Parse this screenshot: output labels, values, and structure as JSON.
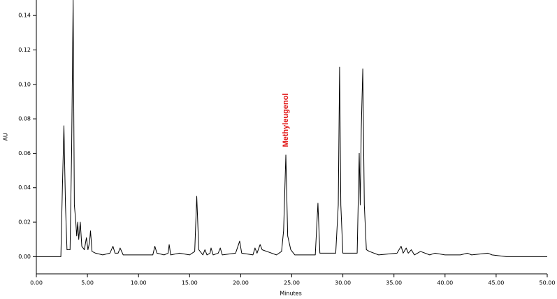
{
  "chart_data": {
    "type": "line",
    "annotation": "Methyleugenol",
    "x_label": "Minutes",
    "y_label": "AU",
    "xlim": [
      0,
      50
    ],
    "ylim": [
      -0.01,
      0.149
    ],
    "xticks": [
      {
        "value": 0,
        "label": "0.00"
      },
      {
        "value": 5,
        "label": "5.00"
      },
      {
        "value": 10,
        "label": "10.00"
      },
      {
        "value": 15,
        "label": "15.00"
      },
      {
        "value": 20,
        "label": "20.00"
      },
      {
        "value": 25,
        "label": "25.00"
      },
      {
        "value": 30,
        "label": "30.00"
      },
      {
        "value": 35,
        "label": "35.00"
      },
      {
        "value": 40,
        "label": "40.00"
      },
      {
        "value": 45,
        "label": "45.00"
      },
      {
        "value": 50,
        "label": "50.00"
      }
    ],
    "yticks": [
      {
        "value": 0,
        "label": "0.00"
      },
      {
        "value": 0.02,
        "label": "0.02"
      },
      {
        "value": 0.04,
        "label": "0.04"
      },
      {
        "value": 0.06,
        "label": "0.06"
      },
      {
        "value": 0.08,
        "label": "0.08"
      },
      {
        "value": 0.1,
        "label": "0.10"
      },
      {
        "value": 0.12,
        "label": "0.12"
      },
      {
        "value": 0.14,
        "label": "0.14"
      }
    ],
    "color": "#000000",
    "x": [
      0,
      2.4,
      2.55,
      2.7,
      2.85,
      3.0,
      3.3,
      3.45,
      3.6,
      3.72,
      3.85,
      3.95,
      4.05,
      4.15,
      4.3,
      4.45,
      4.7,
      4.9,
      5.05,
      5.2,
      5.3,
      5.45,
      5.8,
      6.5,
      7.2,
      7.5,
      7.7,
      8.0,
      8.2,
      8.5,
      9.5,
      10.5,
      11.4,
      11.6,
      11.8,
      12.5,
      12.9,
      13.0,
      13.15,
      14.0,
      15.0,
      15.5,
      15.7,
      15.9,
      16.3,
      16.5,
      16.7,
      17.0,
      17.1,
      17.3,
      17.8,
      18.0,
      18.2,
      19.5,
      19.9,
      20.1,
      21.2,
      21.4,
      21.6,
      21.9,
      22.1,
      23.5,
      24.0,
      24.2,
      24.42,
      24.6,
      24.9,
      25.3,
      27.3,
      27.56,
      27.75,
      29.3,
      29.55,
      29.68,
      29.8,
      30.0,
      31.4,
      31.6,
      31.7,
      31.8,
      31.95,
      32.1,
      32.3,
      32.6,
      33.5,
      35.3,
      35.7,
      35.9,
      36.2,
      36.4,
      36.7,
      37.0,
      37.6,
      38.5,
      39.0,
      40.0,
      41.5,
      42.2,
      42.6,
      44.2,
      44.6,
      46,
      50
    ],
    "values": [
      0,
      0,
      0.04,
      0.076,
      0.03,
      0.004,
      0.004,
      0.06,
      0.149,
      0.03,
      0.021,
      0.012,
      0.02,
      0.01,
      0.02,
      0.006,
      0.004,
      0.011,
      0.004,
      0.008,
      0.015,
      0.003,
      0.002,
      0.001,
      0.002,
      0.006,
      0.002,
      0.002,
      0.005,
      0.001,
      0.001,
      0.001,
      0.001,
      0.006,
      0.002,
      0.001,
      0.002,
      0.007,
      0.001,
      0.002,
      0.001,
      0.003,
      0.035,
      0.004,
      0.001,
      0.004,
      0.001,
      0.002,
      0.005,
      0.001,
      0.002,
      0.005,
      0.001,
      0.002,
      0.009,
      0.002,
      0.001,
      0.005,
      0.002,
      0.007,
      0.004,
      0.001,
      0.003,
      0.015,
      0.059,
      0.012,
      0.004,
      0.001,
      0.001,
      0.031,
      0.002,
      0.002,
      0.03,
      0.11,
      0.03,
      0.002,
      0.002,
      0.06,
      0.03,
      0.074,
      0.109,
      0.03,
      0.004,
      0.003,
      0.001,
      0.002,
      0.006,
      0.002,
      0.005,
      0.002,
      0.004,
      0.001,
      0.003,
      0.001,
      0.002,
      0.001,
      0.001,
      0.002,
      0.001,
      0.002,
      0.001,
      0,
      0
    ]
  }
}
